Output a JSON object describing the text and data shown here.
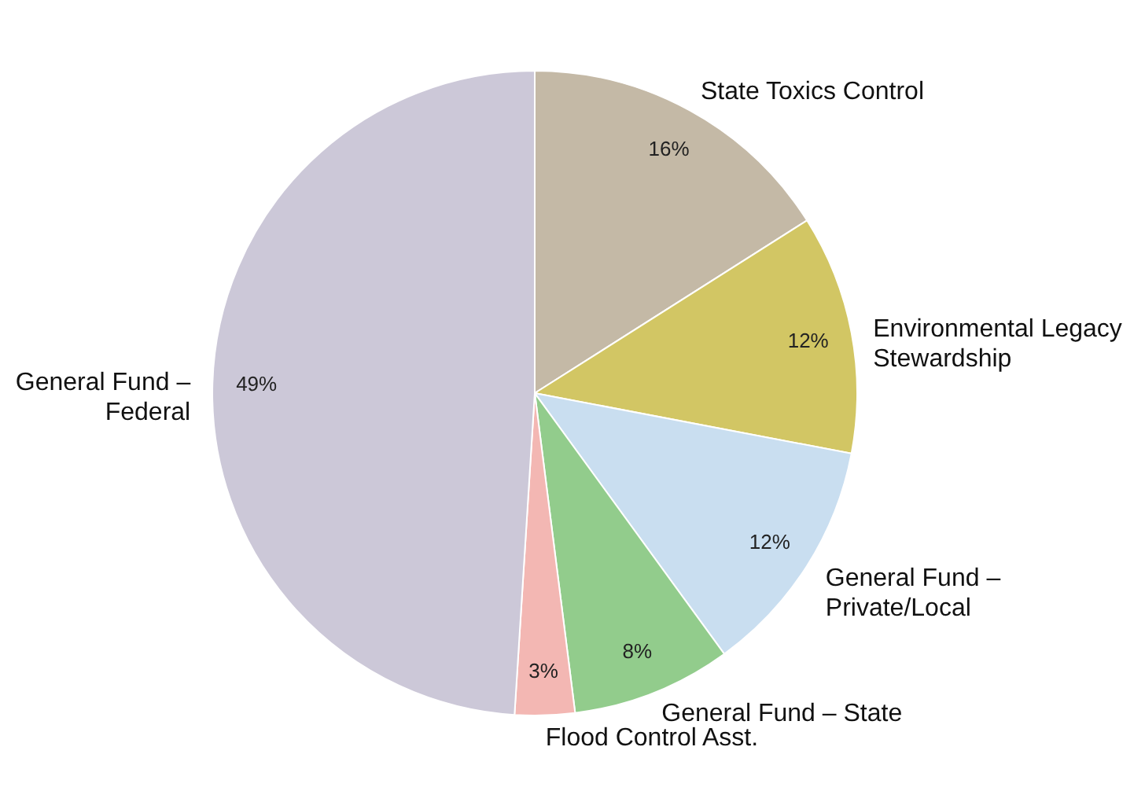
{
  "chart_data": {
    "type": "pie",
    "categories": [
      "State Toxics Control",
      "Environmental Legacy Stewardship",
      "General Fund – Private/Local",
      "General Fund – State",
      "Flood Control Asst.",
      "General Fund – Federal"
    ],
    "values": [
      16,
      12,
      12,
      8,
      3,
      49
    ],
    "colors": [
      "#c4b9a6",
      "#d2c664",
      "#c9def0",
      "#92cc8c",
      "#f3b7b3",
      "#ccc8d8"
    ],
    "value_labels": [
      "16%",
      "12%",
      "12%",
      "8%",
      "3%",
      "49%"
    ]
  }
}
